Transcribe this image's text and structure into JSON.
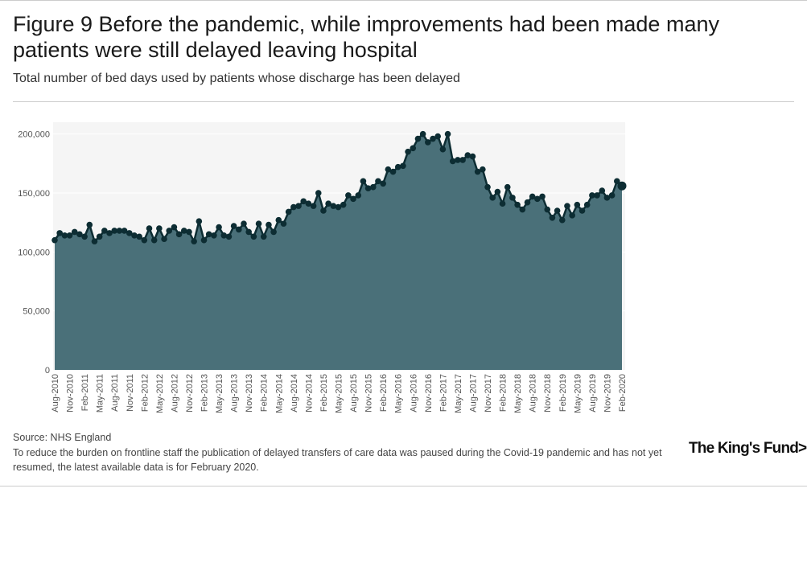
{
  "header": {
    "title": "Figure 9 Before the pandemic, while improvements had been made many patients were still delayed leaving hospital",
    "subtitle": "Total number of bed days used by patients whose discharge has been delayed"
  },
  "footer": {
    "source": "Source: NHS England",
    "note": "To reduce the burden on frontline staff the publication of delayed transfers of care data was paused during the Covid-19 pandemic and has not yet resumed, the latest available data is for February 2020.",
    "logo_text": "The King's Fund>"
  },
  "colors": {
    "area_fill": "#4a7079",
    "line": "#0d2d33",
    "plot_background": "#f5f5f5",
    "grid": "#ffffff"
  },
  "chart_data": {
    "type": "area",
    "title": "",
    "xlabel": "",
    "ylabel": "",
    "ylim": [
      0,
      210000
    ],
    "y_ticks": [
      0,
      50000,
      100000,
      150000,
      200000
    ],
    "y_tick_labels": [
      "0",
      "50,000",
      "100,000",
      "150,000",
      "200,000"
    ],
    "grid": true,
    "legend": "none",
    "x_tick_labels": [
      "Aug-2010",
      "Nov-2010",
      "Feb-2011",
      "May-2011",
      "Aug-2011",
      "Nov-2011",
      "Feb-2012",
      "May-2012",
      "Aug-2012",
      "Nov-2012",
      "Feb-2013",
      "May-2013",
      "Aug-2013",
      "Nov-2013",
      "Feb-2014",
      "May-2014",
      "Aug-2014",
      "Nov-2014",
      "Feb-2015",
      "May-2015",
      "Aug-2015",
      "Nov-2015",
      "Feb-2016",
      "May-2016",
      "Aug-2016",
      "Nov-2016",
      "Feb-2017",
      "May-2017",
      "Aug-2017",
      "Nov-2017",
      "Feb-2018",
      "May-2018",
      "Aug-2018",
      "Nov-2018",
      "Feb-2019",
      "May-2019",
      "Aug-2019",
      "Nov-2019",
      "Feb-2020"
    ],
    "series": [
      {
        "start": "2010-08",
        "values": [
          110000,
          116000,
          114000,
          114000,
          117000,
          115000,
          113000,
          123000,
          109000,
          113000,
          118000,
          116000,
          118000,
          118000,
          118000,
          116000,
          114000,
          113000,
          110000,
          120000,
          110000,
          120000,
          111000,
          118000,
          121000,
          115000,
          118000,
          117000,
          109000,
          126000,
          110000,
          115000,
          114000,
          121000,
          114000,
          113000,
          122000,
          119000,
          124000,
          117000,
          113000,
          124000,
          113000,
          123000,
          117000,
          127000,
          124000,
          134000,
          138000,
          139000,
          143000,
          141000,
          139000,
          150000,
          135000,
          141000,
          139000,
          138000,
          140000,
          148000,
          145000,
          148000,
          160000,
          154000,
          155000,
          160000,
          158000,
          170000,
          168000,
          172000,
          173000,
          185000,
          188000,
          196000,
          200000,
          193000,
          196000,
          198000,
          187000,
          200000,
          177000,
          178000,
          178000,
          182000,
          181000,
          168000,
          170000,
          155000,
          146000,
          151000,
          141000,
          155000,
          146000,
          140000,
          136000,
          142000,
          147000,
          145000,
          147000,
          136000,
          129000,
          135000,
          127000,
          139000,
          131000,
          140000,
          135000,
          140000,
          148000,
          148000,
          152000,
          146000,
          148000,
          160000,
          156000
        ]
      }
    ]
  }
}
